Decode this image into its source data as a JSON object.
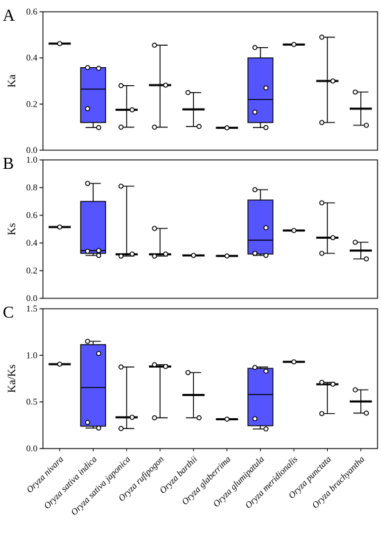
{
  "figure": {
    "categories": [
      "Oryza nivara",
      "Oryza sativa indica",
      "Oryza sativa japonica",
      "Oryza rufipogon",
      "Oryza barthii",
      "Oryza glaberrima",
      "Oryza glumipatula",
      "Oryza meridionalis",
      "Oryza punctata",
      "Oryza brachyantha"
    ],
    "colors": {
      "box_fill": "#5555ff",
      "line": "#000000",
      "point_fill": "#ffffff"
    }
  },
  "chart_data": [
    {
      "type": "box",
      "panel": "A",
      "ylabel": "Ka",
      "ylim": [
        0,
        0.6
      ],
      "yticks": [
        "0.0",
        "0.2",
        "0.4",
        "0.6"
      ],
      "ytick_values": [
        0,
        0.2,
        0.4,
        0.6
      ],
      "groups": [
        {
          "style": "line",
          "median": 0.462,
          "points": [
            0.462
          ]
        },
        {
          "style": "box",
          "min": 0.098,
          "q1": 0.12,
          "median": 0.265,
          "q3": 0.358,
          "max": 0.358,
          "points": [
            0.358,
            0.355,
            0.18,
            0.098
          ]
        },
        {
          "style": "line",
          "min": 0.1,
          "median": 0.175,
          "max": 0.28,
          "points": [
            0.28,
            0.175,
            0.1
          ]
        },
        {
          "style": "line",
          "min": 0.1,
          "median": 0.282,
          "max": 0.455,
          "points": [
            0.455,
            0.282,
            0.1
          ]
        },
        {
          "style": "line",
          "min": 0.103,
          "median": 0.177,
          "max": 0.25,
          "points": [
            0.25,
            0.103
          ]
        },
        {
          "style": "line",
          "median": 0.097,
          "points": [
            0.097
          ]
        },
        {
          "style": "box",
          "min": 0.098,
          "q1": 0.12,
          "median": 0.22,
          "q3": 0.4,
          "max": 0.445,
          "points": [
            0.445,
            0.27,
            0.165,
            0.098
          ]
        },
        {
          "style": "line",
          "median": 0.458,
          "points": [
            0.458
          ]
        },
        {
          "style": "line",
          "min": 0.12,
          "median": 0.3,
          "max": 0.49,
          "points": [
            0.49,
            0.3,
            0.12
          ]
        },
        {
          "style": "line",
          "min": 0.108,
          "median": 0.18,
          "max": 0.252,
          "points": [
            0.252,
            0.108
          ]
        }
      ]
    },
    {
      "type": "box",
      "panel": "B",
      "ylabel": "Ks",
      "ylim": [
        0,
        1.0
      ],
      "yticks": [
        "0.0",
        "0.2",
        "0.4",
        "0.6",
        "0.8",
        "1.0"
      ],
      "ytick_values": [
        0,
        0.2,
        0.4,
        0.6,
        0.8,
        1.0
      ],
      "groups": [
        {
          "style": "line",
          "median": 0.515,
          "points": [
            0.515
          ]
        },
        {
          "style": "box",
          "min": 0.31,
          "q1": 0.325,
          "median": 0.345,
          "q3": 0.7,
          "max": 0.83,
          "points": [
            0.83,
            0.345,
            0.34,
            0.31
          ]
        },
        {
          "style": "line",
          "min": 0.305,
          "median": 0.318,
          "max": 0.81,
          "points": [
            0.81,
            0.32,
            0.305
          ]
        },
        {
          "style": "line",
          "min": 0.305,
          "median": 0.318,
          "max": 0.505,
          "points": [
            0.505,
            0.32,
            0.305
          ]
        },
        {
          "style": "line",
          "median": 0.31,
          "points": [
            0.31
          ]
        },
        {
          "style": "line",
          "median": 0.306,
          "points": [
            0.306
          ]
        },
        {
          "style": "box",
          "min": 0.31,
          "q1": 0.32,
          "median": 0.42,
          "q3": 0.71,
          "max": 0.785,
          "points": [
            0.785,
            0.51,
            0.325,
            0.31
          ]
        },
        {
          "style": "line",
          "median": 0.49,
          "points": [
            0.49
          ]
        },
        {
          "style": "line",
          "min": 0.325,
          "median": 0.438,
          "max": 0.69,
          "points": [
            0.69,
            0.438,
            0.325
          ]
        },
        {
          "style": "line",
          "min": 0.285,
          "median": 0.345,
          "max": 0.405,
          "points": [
            0.405,
            0.285
          ]
        }
      ]
    },
    {
      "type": "box",
      "panel": "C",
      "ylabel": "Ka/Ks",
      "ylim": [
        0,
        1.5
      ],
      "yticks": [
        "0.0",
        "0.5",
        "1.0",
        "1.5"
      ],
      "ytick_values": [
        0,
        0.5,
        1.0,
        1.5
      ],
      "groups": [
        {
          "style": "line",
          "median": 0.905,
          "points": [
            0.905
          ]
        },
        {
          "style": "box",
          "min": 0.22,
          "q1": 0.24,
          "median": 0.655,
          "q3": 1.115,
          "max": 1.15,
          "points": [
            1.15,
            1.02,
            0.28,
            0.22
          ]
        },
        {
          "style": "line",
          "min": 0.215,
          "median": 0.335,
          "max": 0.875,
          "points": [
            0.875,
            0.335,
            0.215
          ]
        },
        {
          "style": "line",
          "min": 0.33,
          "median": 0.88,
          "max": 0.9,
          "points": [
            0.9,
            0.88,
            0.33
          ]
        },
        {
          "style": "line",
          "min": 0.33,
          "median": 0.575,
          "max": 0.815,
          "points": [
            0.815,
            0.33
          ]
        },
        {
          "style": "line",
          "median": 0.315,
          "points": [
            0.315
          ]
        },
        {
          "style": "box",
          "min": 0.21,
          "q1": 0.245,
          "median": 0.58,
          "q3": 0.86,
          "max": 0.875,
          "points": [
            0.87,
            0.83,
            0.32,
            0.21
          ]
        },
        {
          "style": "line",
          "median": 0.93,
          "points": [
            0.93
          ]
        },
        {
          "style": "line",
          "min": 0.375,
          "median": 0.69,
          "max": 0.71,
          "points": [
            0.71,
            0.69,
            0.375
          ]
        },
        {
          "style": "line",
          "min": 0.38,
          "median": 0.505,
          "max": 0.63,
          "points": [
            0.63,
            0.38
          ]
        }
      ]
    }
  ]
}
